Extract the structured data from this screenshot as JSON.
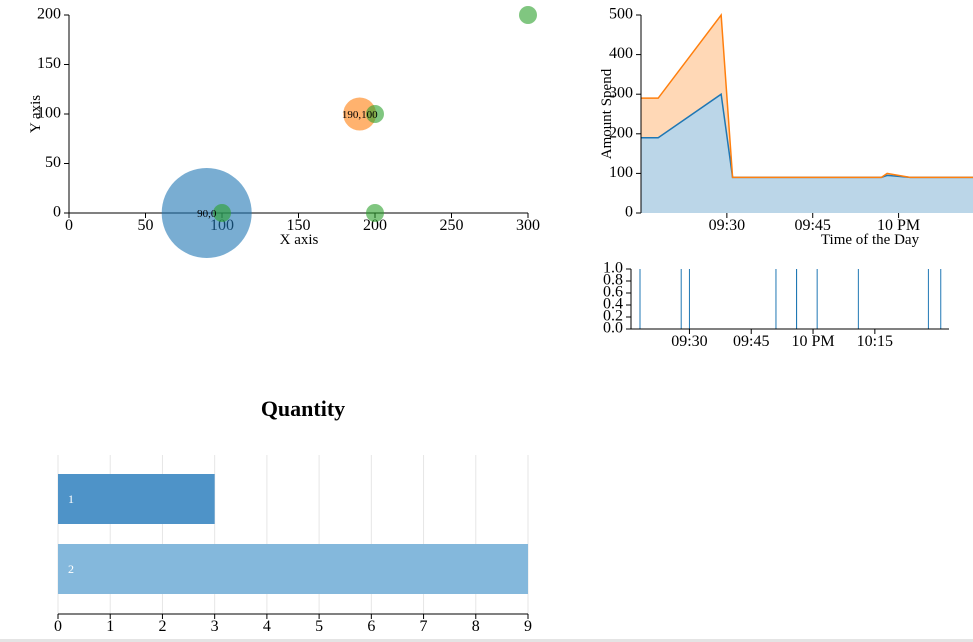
{
  "chart_data": [
    {
      "type": "scatter",
      "xlabel": "X axis",
      "ylabel": "Y axis",
      "xlim": [
        0,
        300
      ],
      "ylim": [
        0,
        200
      ],
      "xticks": [
        "0",
        "50",
        "100",
        "150",
        "200",
        "250",
        "300"
      ],
      "yticks": [
        "0",
        "50",
        "100",
        "150",
        "200"
      ],
      "points": [
        {
          "x": 90,
          "y": 0,
          "size": 30,
          "color": "#1f77b4",
          "label": "90,0"
        },
        {
          "x": 190,
          "y": 100,
          "size": 11,
          "color": "#ff7f0e",
          "label": "190,100"
        },
        {
          "x": 100,
          "y": 0,
          "size": 6,
          "color": "#2ca02c",
          "label": ""
        },
        {
          "x": 200,
          "y": 0,
          "size": 6,
          "color": "#2ca02c",
          "label": ""
        },
        {
          "x": 200,
          "y": 100,
          "size": 6,
          "color": "#2ca02c",
          "label": ""
        },
        {
          "x": 300,
          "y": 200,
          "size": 6,
          "color": "#2ca02c",
          "label": ""
        }
      ]
    },
    {
      "type": "area",
      "stacked": true,
      "xlabel": "Time of the Day",
      "ylabel": "Amount Spend",
      "ylim": [
        0,
        500
      ],
      "yticks": [
        "0",
        "100",
        "200",
        "300",
        "400",
        "500"
      ],
      "xticks": [
        {
          "time": "09:30",
          "label": "09:30"
        },
        {
          "time": "09:45",
          "label": "09:45"
        },
        {
          "time": "10:00",
          "label": "10 PM"
        }
      ],
      "x": [
        "09:15",
        "09:18",
        "09:29",
        "09:31",
        "09:46",
        "09:57",
        "09:58",
        "10:02",
        "10:13"
      ],
      "series": [
        {
          "values": [
            190,
            190,
            300,
            90,
            90,
            90,
            95,
            90,
            90
          ],
          "color": "#1f77b4"
        },
        {
          "values": [
            100,
            100,
            200,
            0,
            0,
            0,
            5,
            0,
            0
          ],
          "color": "#ff7f0e"
        }
      ]
    },
    {
      "type": "bar",
      "subtype": "event-ticks",
      "ylim": [
        0,
        1
      ],
      "yticks": [
        "0.0",
        "0.2",
        "0.4",
        "0.6",
        "0.8",
        "1.0"
      ],
      "xticks": [
        {
          "time": "09:30",
          "label": "09:30"
        },
        {
          "time": "09:45",
          "label": "09:45"
        },
        {
          "time": "10:00",
          "label": "10 PM"
        },
        {
          "time": "10:15",
          "label": "10:15"
        }
      ],
      "events": [
        "09:18",
        "09:28",
        "09:30",
        "09:51",
        "09:56",
        "09:56",
        "10:01",
        "10:11",
        "10:28",
        "10:31"
      ],
      "color": "#1f77b4"
    },
    {
      "type": "bar",
      "orientation": "horizontal",
      "title": "Quantity",
      "categories": [
        "1",
        "2"
      ],
      "values": [
        3,
        9
      ],
      "xlim": [
        0,
        9
      ],
      "xticks": [
        "0",
        "1",
        "2",
        "3",
        "4",
        "5",
        "6",
        "7",
        "8",
        "9"
      ],
      "colors": [
        "#4e93c8",
        "#84b8dc"
      ]
    }
  ]
}
